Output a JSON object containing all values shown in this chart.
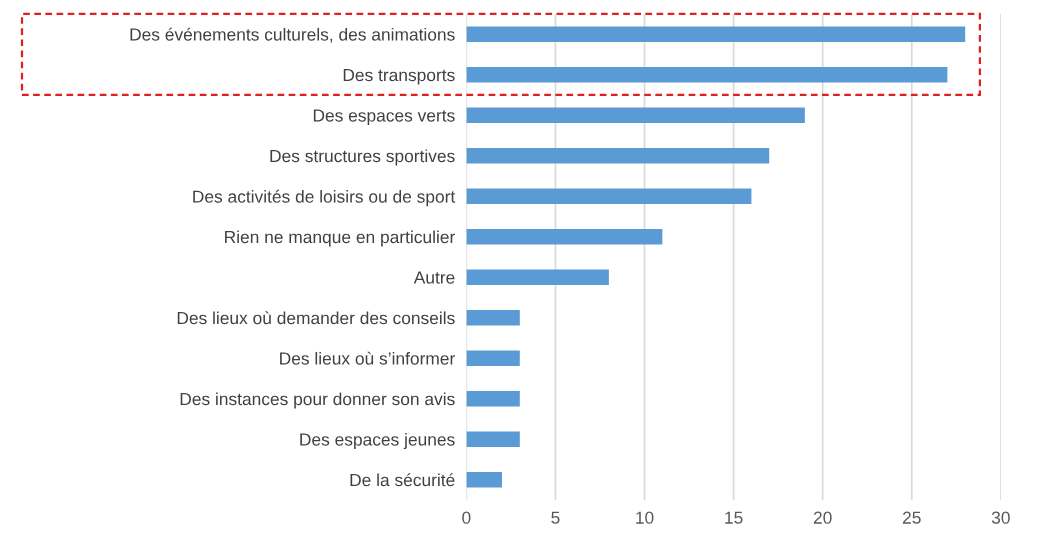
{
  "chart_data": {
    "type": "bar",
    "orientation": "horizontal",
    "categories": [
      "Des événements culturels, des animations",
      "Des transports",
      "Des espaces verts",
      "Des structures sportives",
      "Des activités de loisirs ou de sport",
      "Rien ne manque en particulier",
      "Autre",
      "Des lieux où demander des conseils",
      "Des lieux où s’informer",
      "Des instances pour donner son avis",
      "Des espaces jeunes",
      "De la sécurité"
    ],
    "values": [
      28,
      27,
      19,
      17,
      16,
      11,
      8,
      3,
      3,
      3,
      3,
      2
    ],
    "color": "#5b9bd5",
    "xlim": [
      0,
      30
    ],
    "xticks": [
      0,
      5,
      10,
      15,
      20,
      25,
      30
    ],
    "grid": "x"
  }
}
